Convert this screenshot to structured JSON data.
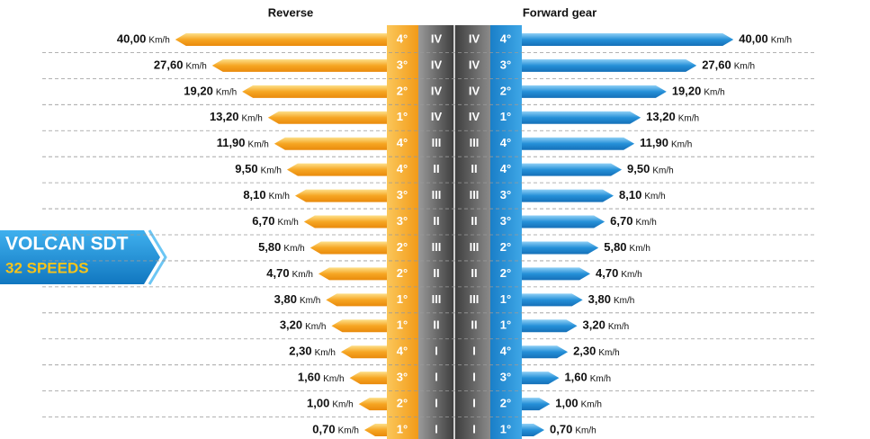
{
  "chart_data": {
    "type": "butterfly",
    "title": "VOLCAN SDT",
    "subtitle": "32 SPEEDS",
    "unit": "Km/h",
    "series": [
      {
        "name": "Reverse",
        "color": "#f5a21f",
        "values": [
          40,
          27.6,
          19.2,
          13.2,
          11.9,
          9.5,
          8.1,
          6.7,
          5.8,
          4.7,
          3.8,
          3.2,
          2.3,
          1.6,
          1.0,
          0.7
        ],
        "value_labels": [
          "40,00",
          "27,60",
          "19,20",
          "13,20",
          "11,90",
          "9,50",
          "8,10",
          "6,70",
          "5,80",
          "4,70",
          "3,80",
          "3,20",
          "2,30",
          "1,60",
          "1,00",
          "0,70"
        ],
        "gears": [
          "4°",
          "3°",
          "2°",
          "1°",
          "4°",
          "4°",
          "3°",
          "3°",
          "2°",
          "2°",
          "1°",
          "1°",
          "4°",
          "3°",
          "2°",
          "1°"
        ],
        "ranges": [
          "IV",
          "IV",
          "IV",
          "IV",
          "III",
          "II",
          "III",
          "II",
          "III",
          "II",
          "III",
          "II",
          "I",
          "I",
          "I",
          "I"
        ]
      },
      {
        "name": "Forward gear",
        "color": "#1f8fd6",
        "values": [
          40,
          27.6,
          19.2,
          13.2,
          11.9,
          9.5,
          8.1,
          6.7,
          5.8,
          4.7,
          3.8,
          3.2,
          2.3,
          1.6,
          1.0,
          0.7
        ],
        "value_labels": [
          "40,00",
          "27,60",
          "19,20",
          "13,20",
          "11,90",
          "9,50",
          "8,10",
          "6,70",
          "5,80",
          "4,70",
          "3,80",
          "3,20",
          "2,30",
          "1,60",
          "1,00",
          "0,70"
        ],
        "gears": [
          "4°",
          "3°",
          "2°",
          "1°",
          "4°",
          "4°",
          "3°",
          "3°",
          "2°",
          "2°",
          "1°",
          "1°",
          "4°",
          "3°",
          "2°",
          "1°"
        ],
        "ranges": [
          "IV",
          "IV",
          "IV",
          "IV",
          "III",
          "II",
          "III",
          "II",
          "III",
          "II",
          "III",
          "II",
          "I",
          "I",
          "I",
          "I"
        ]
      }
    ]
  }
}
